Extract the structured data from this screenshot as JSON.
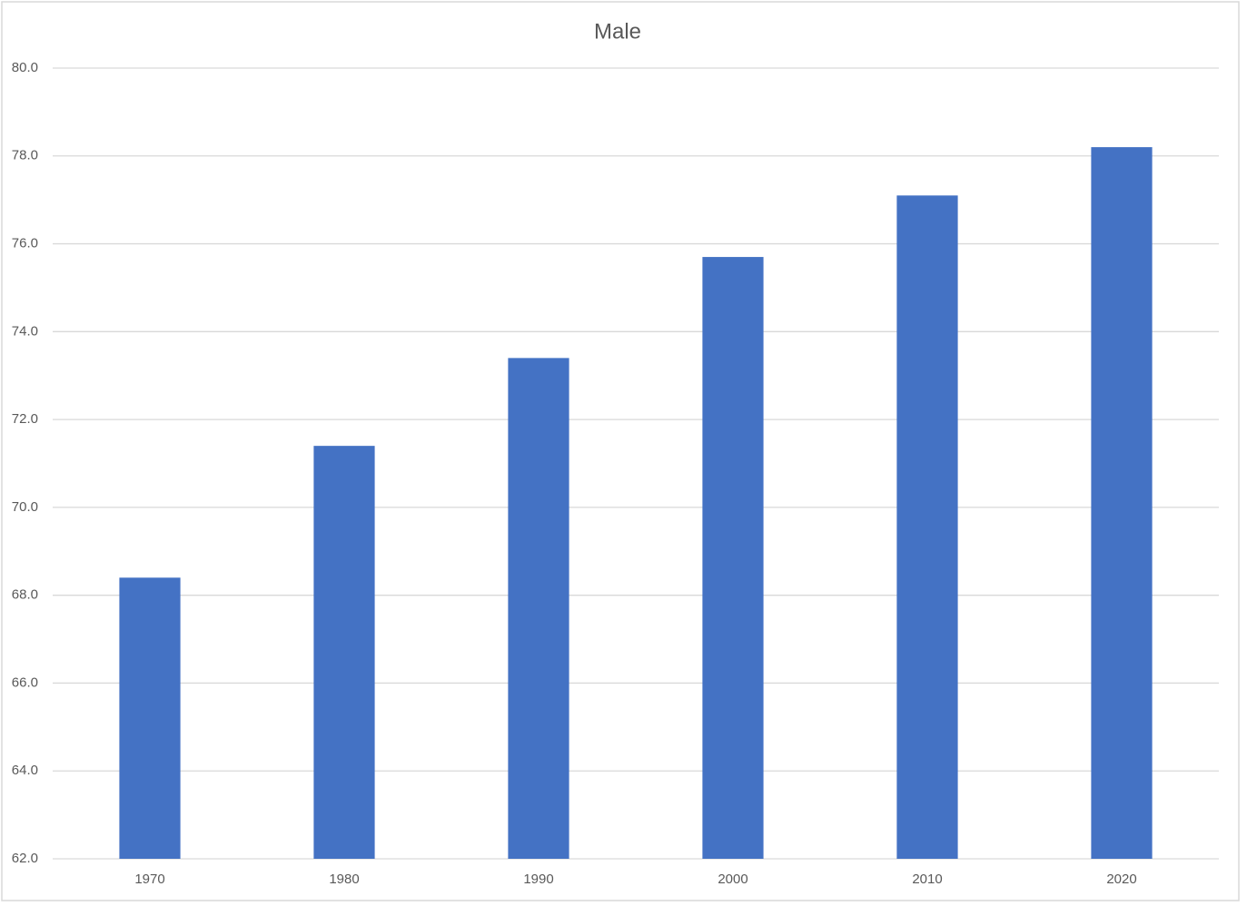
{
  "chart_data": {
    "type": "bar",
    "title": "Male",
    "categories": [
      "1970",
      "1980",
      "1990",
      "2000",
      "2010",
      "2020"
    ],
    "values": [
      68.4,
      71.4,
      73.4,
      75.7,
      77.1,
      78.2
    ],
    "color": "#4472c4",
    "ylim": [
      62,
      80
    ],
    "yticks": [
      {
        "value": 62,
        "label": "62.0"
      },
      {
        "value": 64,
        "label": "64.0"
      },
      {
        "value": 66,
        "label": "66.0"
      },
      {
        "value": 68,
        "label": "68.0"
      },
      {
        "value": 70,
        "label": "70.0"
      },
      {
        "value": 72,
        "label": "72.0"
      },
      {
        "value": 74,
        "label": "74.0"
      },
      {
        "value": 76,
        "label": "76.0"
      },
      {
        "value": 78,
        "label": "78.0"
      },
      {
        "value": 80,
        "label": "80.0"
      }
    ],
    "grid": true
  }
}
